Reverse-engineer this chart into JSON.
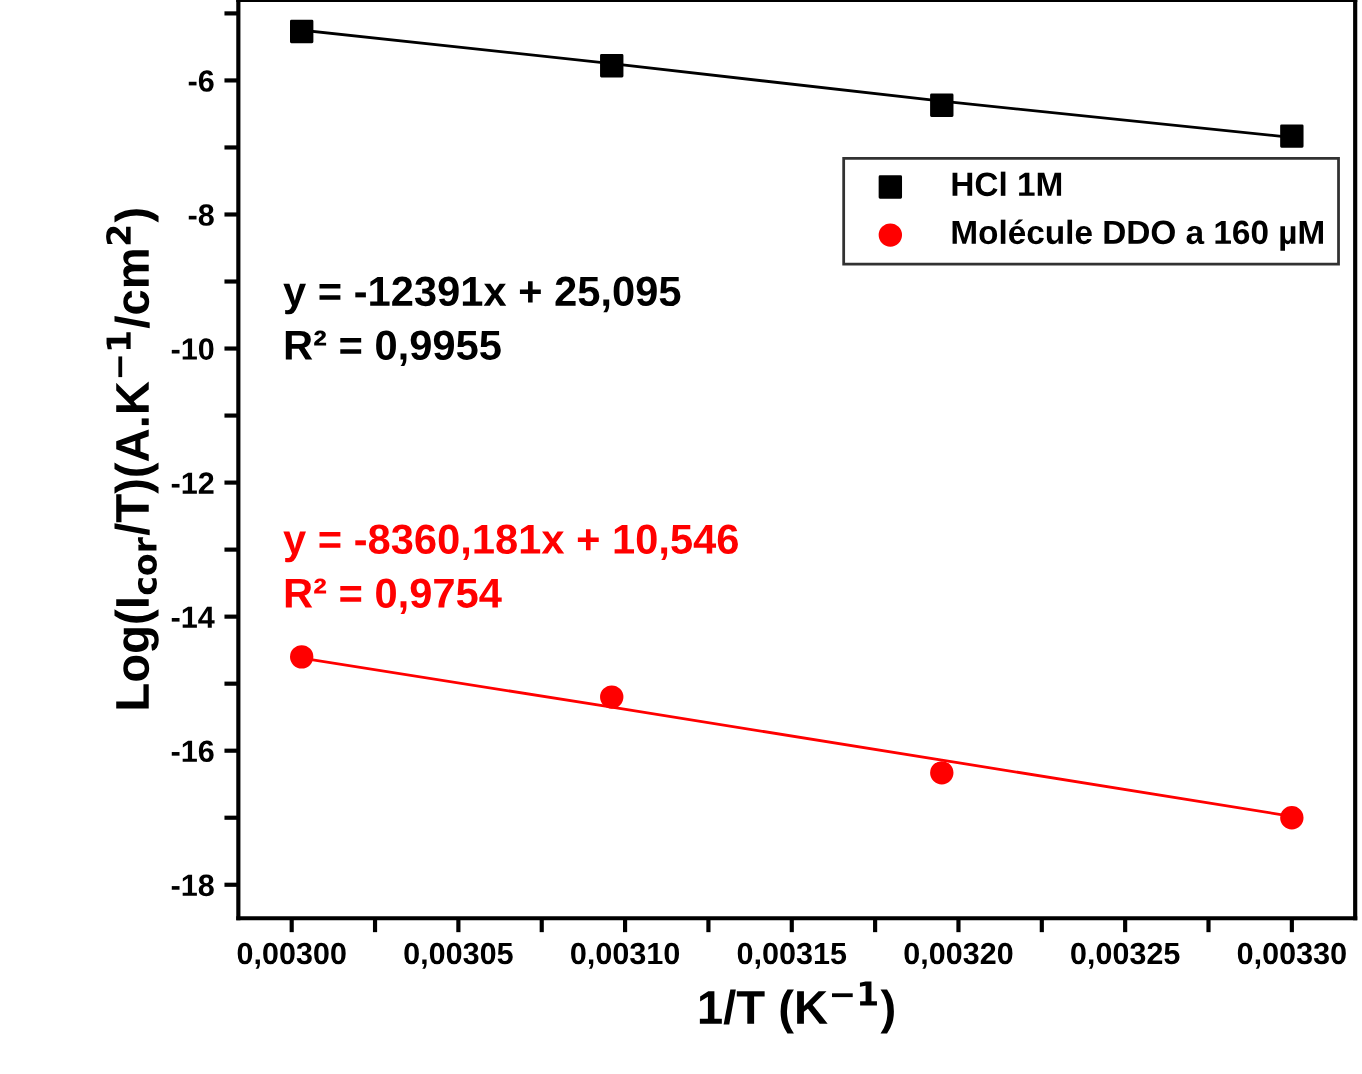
{
  "chart_data": {
    "type": "scatter",
    "xlabel": "1/T (K$^{−1}$)",
    "ylabel": "Log(I$_{cor}$/T)(A.K$^{−1}$/cm$^{2}$)",
    "x": [
      0.003003,
      0.003096,
      0.003195,
      0.0033
    ],
    "series": [
      {
        "name": "HCl 1M",
        "color": "#000000",
        "marker": "square",
        "values": [
          -5.27,
          -5.78,
          -6.37,
          -6.83
        ]
      },
      {
        "name": "Molécule DDO a 160 µM",
        "color": "#ff0000",
        "marker": "circle",
        "values": [
          -14.6,
          -15.2,
          -16.33,
          -17.0
        ]
      },
      {
        "type": "line",
        "color": "#000000",
        "values": [
          -5.25,
          -5.75,
          -6.31,
          -6.85
        ]
      },
      {
        "type": "line",
        "color": "#ff0000",
        "values": [
          -14.62,
          -15.35,
          -16.14,
          -16.98
        ]
      }
    ],
    "annotations": [
      "y = -12391x + 25,095\nR² = 0,9955",
      "y = -8360,181x + 10,546\nR² = 0,9754"
    ],
    "xlim": [
      0.002984,
      0.003319
    ],
    "ylim": [
      -18.5,
      -4.8
    ],
    "xticks": [
      {
        "value": 0.003,
        "label": "0,00300"
      },
      {
        "value": 0.003025,
        "label": null
      },
      {
        "value": 0.00305,
        "label": "0,00305"
      },
      {
        "value": 0.003075,
        "label": null
      },
      {
        "value": 0.0031,
        "label": "0,00310"
      },
      {
        "value": 0.003125,
        "label": null
      },
      {
        "value": 0.00315,
        "label": "0,00315"
      },
      {
        "value": 0.003175,
        "label": null
      },
      {
        "value": 0.0032,
        "label": "0,00320"
      },
      {
        "value": 0.003225,
        "label": null
      },
      {
        "value": 0.00325,
        "label": "0,00325"
      },
      {
        "value": 0.003275,
        "label": null
      },
      {
        "value": 0.0033,
        "label": "0,00330"
      }
    ],
    "yticks": [
      {
        "value": -18,
        "label": "-18"
      },
      {
        "value": -17,
        "label": null
      },
      {
        "value": -16,
        "label": "-16"
      },
      {
        "value": -15,
        "label": null
      },
      {
        "value": -14,
        "label": "-14"
      },
      {
        "value": -13,
        "label": null
      },
      {
        "value": -12,
        "label": "-12"
      },
      {
        "value": -11,
        "label": null
      },
      {
        "value": -10,
        "label": "-10"
      },
      {
        "value": -9,
        "label": null
      },
      {
        "value": -8,
        "label": "-8"
      },
      {
        "value": -7,
        "label": null
      },
      {
        "value": -6,
        "label": "-6"
      },
      {
        "value": -5,
        "label": null
      }
    ],
    "grid": false,
    "legend": "right"
  }
}
